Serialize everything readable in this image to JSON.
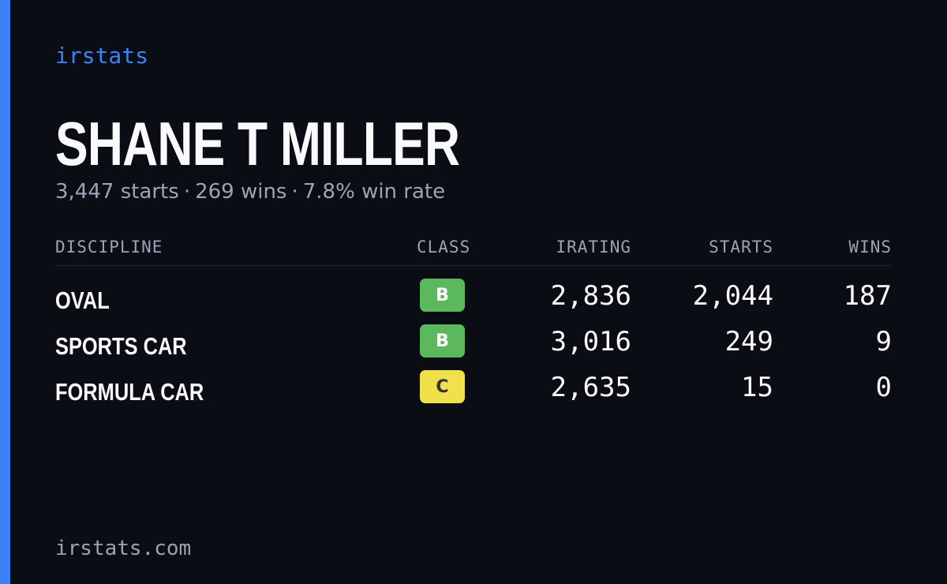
{
  "brand": "irstats",
  "driver_name": "SHANE T MILLER",
  "summary": {
    "starts": "3,447 starts",
    "wins": "269 wins",
    "win_rate": "7.8% win rate",
    "separator": "·"
  },
  "columns": {
    "discipline": "DISCIPLINE",
    "class": "CLASS",
    "irating": "IRATING",
    "starts": "STARTS",
    "wins": "WINS"
  },
  "rows": [
    {
      "discipline": "OVAL",
      "class": "B",
      "class_color": "#5cb85c",
      "class_text_color": "#ffffff",
      "irating": "2,836",
      "starts": "2,044",
      "wins": "187"
    },
    {
      "discipline": "SPORTS CAR",
      "class": "B",
      "class_color": "#5cb85c",
      "class_text_color": "#ffffff",
      "irating": "3,016",
      "starts": "249",
      "wins": "9"
    },
    {
      "discipline": "FORMULA CAR",
      "class": "C",
      "class_color": "#f0e14a",
      "class_text_color": "#333333",
      "irating": "2,635",
      "starts": "15",
      "wins": "0"
    }
  ],
  "footer": "irstats.com",
  "colors": {
    "accent": "#3b82f6",
    "background": "#0a0d14",
    "muted": "#9aa4b6"
  }
}
